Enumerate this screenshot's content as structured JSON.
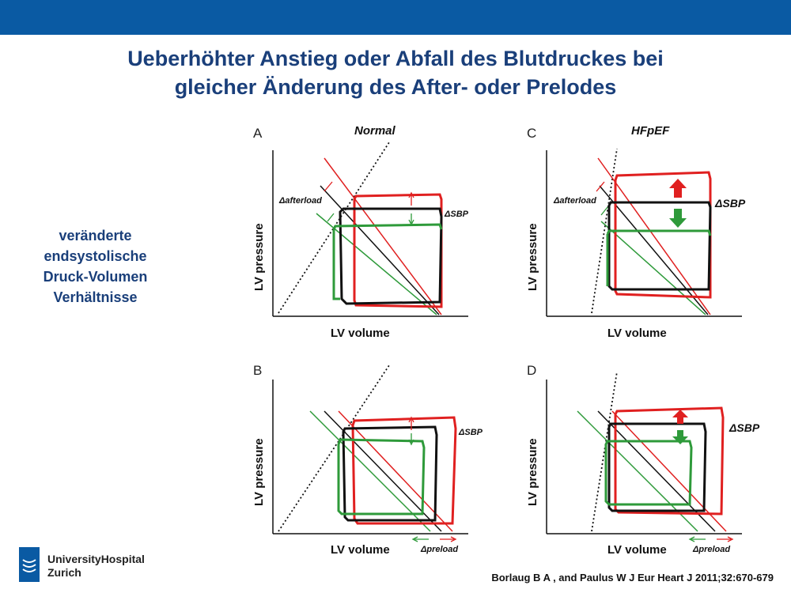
{
  "slide": {
    "title_line1": "Ueberhöhter Anstieg oder Abfall des Blutdruckes bei",
    "title_line2": "gleicher Änderung des After- oder Prelodes",
    "side_lines": [
      "veränderte",
      "endsystolische",
      "Druck-Volumen",
      "Verhältnisse"
    ],
    "logo_line1": "UniversityHospital",
    "logo_line2": "Zurich",
    "citation": "Borlaug B A , and Paulus W J Eur Heart J 2011;32:670-679"
  },
  "panels": {
    "A": {
      "letter": "A",
      "title": "Normal",
      "ylabel": "LV pressure",
      "xlabel": "LV volume",
      "ann_load": "Δafterload",
      "ann_sbp": "ΔSBP"
    },
    "C": {
      "letter": "C",
      "title": "HFpEF",
      "ylabel": "LV pressure",
      "xlabel": "LV volume",
      "ann_load": "Δafterload",
      "ann_sbp": "ΔSBP"
    },
    "B": {
      "letter": "B",
      "title": "",
      "ylabel": "LV pressure",
      "xlabel": "LV volume",
      "ann_load": "Δpreload",
      "ann_sbp": "ΔSBP"
    },
    "D": {
      "letter": "D",
      "title": "",
      "ylabel": "LV pressure",
      "xlabel": "LV volume",
      "ann_load": "Δpreload",
      "ann_sbp": "ΔSBP"
    }
  },
  "colors": {
    "header_bar": "#0a5aa3",
    "title_text": "#1a3f7a",
    "loop_increase": "#e02020",
    "loop_baseline": "#111111",
    "loop_decrease": "#2e9a3a"
  }
}
